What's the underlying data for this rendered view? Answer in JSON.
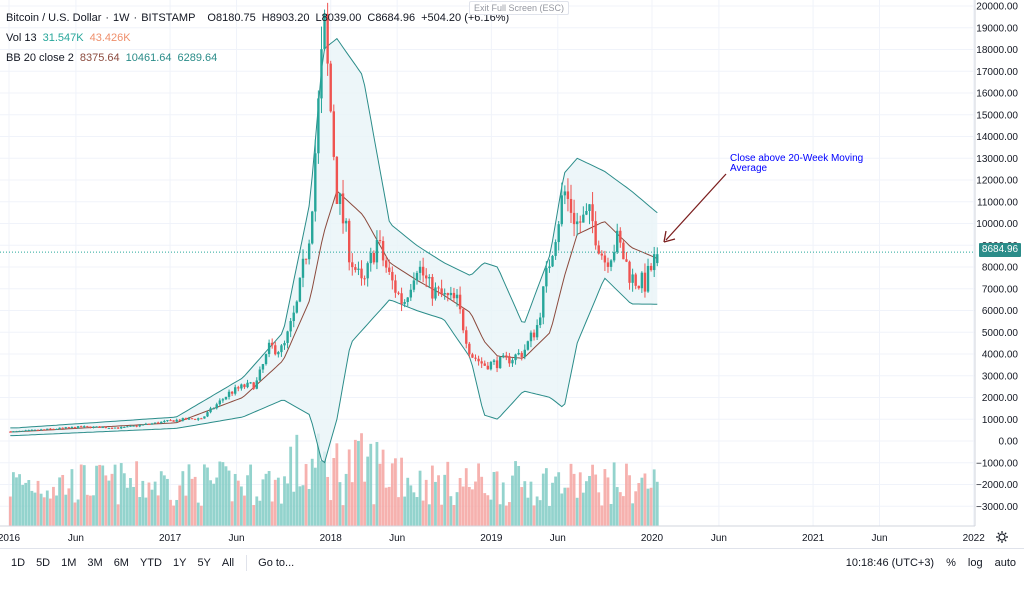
{
  "header": {
    "symbol": "Bitcoin / U.S. Dollar",
    "interval": "1W",
    "exchange": "BITSTAMP",
    "o_label": "O",
    "o": "8180.75",
    "h_label": "H",
    "h": "8903.20",
    "l_label": "L",
    "l": "8039.00",
    "c_label": "C",
    "c": "8684.96",
    "change": "+504.20 (+6.16%)",
    "exit_fullscreen": "Exit Full Screen (ESC)"
  },
  "indicators": {
    "vol_label": "Vol 13",
    "vol_value": "31.547K",
    "vol_ma": "43.426K",
    "bb_label": "BB 20 close 2",
    "bb_mid": "8375.64",
    "bb_upper": "10461.64",
    "bb_lower": "6289.64"
  },
  "annotation": {
    "line1": "Close above 20-Week Moving",
    "line2": "Average"
  },
  "last_price": "8684.96",
  "bottom_bar": {
    "ranges": [
      "1D",
      "5D",
      "1M",
      "3M",
      "6M",
      "YTD",
      "1Y",
      "5Y",
      "All"
    ],
    "goto": "Go to...",
    "time": "10:18:46 (UTC+3)",
    "percent": "%",
    "log": "log",
    "auto": "auto"
  },
  "colors": {
    "up": "#26a69a",
    "down": "#ef5350",
    "vol_up": "#80cbc4",
    "vol_down": "#f4a3a0",
    "bb_band": "#2a8c89",
    "bb_basis": "#8b4a3d",
    "bb_fill": "#e8f4f8",
    "annotation": "#0000ff",
    "arrow": "#7b1e1e"
  },
  "chart_data": {
    "type": "candlestick",
    "x_ticks": [
      "2016",
      "Jun",
      "2017",
      "Jun",
      "2018",
      "Jun",
      "2019",
      "Jun",
      "2020",
      "Jun",
      "2021",
      "Jun",
      "2022"
    ],
    "y_ticks": [
      20000,
      19000,
      18000,
      17000,
      16000,
      15000,
      14000,
      13000,
      12000,
      11000,
      10000,
      9000,
      8000,
      7000,
      6000,
      5000,
      4000,
      3000,
      2000,
      1000,
      0,
      -1000,
      -2000,
      -3000
    ],
    "y_tick_labels": [
      "20000.00",
      "19000.00",
      "18000.00",
      "17000.00",
      "16000.00",
      "15000.00",
      "14000.00",
      "13000.00",
      "12000.00",
      "11000.00",
      "10000.00",
      "9000.00",
      "8000.00",
      "7000.00",
      "6000.00",
      "5000.00",
      "4000.00",
      "3000.00",
      "2000.00",
      "1000.00",
      "0.00",
      "−1000.00",
      "−2000.00",
      "−3000.00"
    ],
    "ylim": [
      -3800,
      20200
    ],
    "close_anchors": [
      [
        "2016-01",
        430
      ],
      [
        "2016-06",
        650
      ],
      [
        "2016-09",
        610
      ],
      [
        "2017-01",
        960
      ],
      [
        "2017-03",
        1050
      ],
      [
        "2017-05",
        2200
      ],
      [
        "2017-06",
        2500
      ],
      [
        "2017-07",
        2600
      ],
      [
        "2017-08",
        4300
      ],
      [
        "2017-09",
        4200
      ],
      [
        "2017-10",
        6100
      ],
      [
        "2017-11",
        9800
      ],
      [
        "2017-12-17",
        19100
      ],
      [
        "2018-01",
        11500
      ],
      [
        "2018-02",
        8500
      ],
      [
        "2018-03",
        7000
      ],
      [
        "2018-04",
        9200
      ],
      [
        "2018-05",
        7500
      ],
      [
        "2018-06",
        6300
      ],
      [
        "2018-07",
        8200
      ],
      [
        "2018-08",
        7000
      ],
      [
        "2018-09",
        6600
      ],
      [
        "2018-10",
        6400
      ],
      [
        "2018-11",
        4000
      ],
      [
        "2018-12",
        3500
      ],
      [
        "2019-01",
        3600
      ],
      [
        "2019-02",
        3800
      ],
      [
        "2019-03",
        4100
      ],
      [
        "2019-04",
        5300
      ],
      [
        "2019-05",
        8500
      ],
      [
        "2019-06",
        11500
      ],
      [
        "2019-07",
        10000
      ],
      [
        "2019-08",
        10300
      ],
      [
        "2019-09",
        8300
      ],
      [
        "2019-10",
        9200
      ],
      [
        "2019-11",
        7500
      ],
      [
        "2019-12",
        7200
      ],
      [
        "2020-01",
        8685
      ]
    ],
    "bb_upper_anchors": [
      [
        "2016-01",
        600
      ],
      [
        "2017-01",
        1100
      ],
      [
        "2017-06",
        2900
      ],
      [
        "2017-09",
        5000
      ],
      [
        "2017-11",
        11000
      ],
      [
        "2017-12",
        18000
      ],
      [
        "2018-01",
        18500
      ],
      [
        "2018-03",
        16800
      ],
      [
        "2018-05",
        10000
      ],
      [
        "2018-07",
        9000
      ],
      [
        "2018-09",
        8200
      ],
      [
        "2018-11",
        7600
      ],
      [
        "2018-12",
        8200
      ],
      [
        "2019-01",
        8000
      ],
      [
        "2019-03",
        5300
      ],
      [
        "2019-05",
        8600
      ],
      [
        "2019-06",
        12300
      ],
      [
        "2019-07",
        13000
      ],
      [
        "2019-09",
        12400
      ],
      [
        "2019-11",
        11500
      ],
      [
        "2020-01",
        10460
      ]
    ],
    "bb_basis_anchors": [
      [
        "2016-01",
        420
      ],
      [
        "2017-01",
        840
      ],
      [
        "2017-06",
        2000
      ],
      [
        "2017-09",
        3700
      ],
      [
        "2017-11",
        6500
      ],
      [
        "2017-12",
        9500
      ],
      [
        "2018-01",
        11500
      ],
      [
        "2018-03",
        10400
      ],
      [
        "2018-05",
        8200
      ],
      [
        "2018-07",
        7400
      ],
      [
        "2018-09",
        6700
      ],
      [
        "2018-11",
        5900
      ],
      [
        "2018-12",
        4600
      ],
      [
        "2019-01",
        3900
      ],
      [
        "2019-03",
        3800
      ],
      [
        "2019-05",
        5000
      ],
      [
        "2019-06",
        7500
      ],
      [
        "2019-07",
        9500
      ],
      [
        "2019-09",
        10100
      ],
      [
        "2019-11",
        8900
      ],
      [
        "2020-01",
        8375
      ]
    ],
    "bb_lower_anchors": [
      [
        "2016-01",
        250
      ],
      [
        "2017-01",
        580
      ],
      [
        "2017-06",
        1100
      ],
      [
        "2017-09",
        1900
      ],
      [
        "2017-11",
        1200
      ],
      [
        "2017-12",
        -1200
      ],
      [
        "2018-01",
        1000
      ],
      [
        "2018-02",
        4500
      ],
      [
        "2018-05",
        6500
      ],
      [
        "2018-07",
        6000
      ],
      [
        "2018-09",
        5600
      ],
      [
        "2018-11",
        3800
      ],
      [
        "2018-12",
        1200
      ],
      [
        "2019-01",
        1000
      ],
      [
        "2019-03",
        2300
      ],
      [
        "2019-05",
        2000
      ],
      [
        "2019-06",
        1500
      ],
      [
        "2019-07",
        4500
      ],
      [
        "2019-09",
        7500
      ],
      [
        "2019-11",
        6300
      ],
      [
        "2020-01",
        6290
      ]
    ]
  }
}
